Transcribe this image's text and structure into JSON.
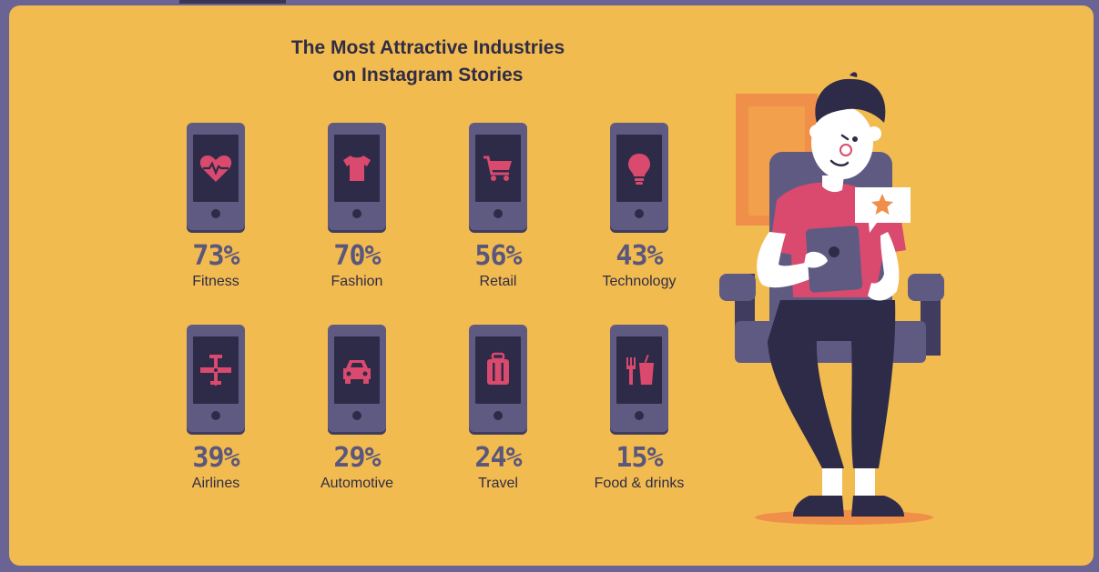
{
  "title": {
    "line1": "The Most Attractive Industries",
    "line2": "on Instagram Stories"
  },
  "industries": [
    {
      "percent": "73%",
      "label": "Fitness",
      "icon": "heart-pulse-icon"
    },
    {
      "percent": "70%",
      "label": "Fashion",
      "icon": "tshirt-icon"
    },
    {
      "percent": "56%",
      "label": "Retail",
      "icon": "shopping-cart-icon"
    },
    {
      "percent": "43%",
      "label": "Technology",
      "icon": "lightbulb-icon"
    },
    {
      "percent": "39%",
      "label": "Airlines",
      "icon": "airplane-icon"
    },
    {
      "percent": "29%",
      "label": "Automotive",
      "icon": "car-icon"
    },
    {
      "percent": "24%",
      "label": "Travel",
      "icon": "luggage-icon"
    },
    {
      "percent": "15%",
      "label": "Food & drinks",
      "icon": "fork-cup-icon"
    }
  ],
  "colors": {
    "background": "#f2bb50",
    "frame": "#6a6494",
    "phone": "#5e5a82",
    "screen": "#2e2b48",
    "icon": "#d94a6e",
    "text_dark": "#2f2c45",
    "percent": "#5a567c"
  }
}
